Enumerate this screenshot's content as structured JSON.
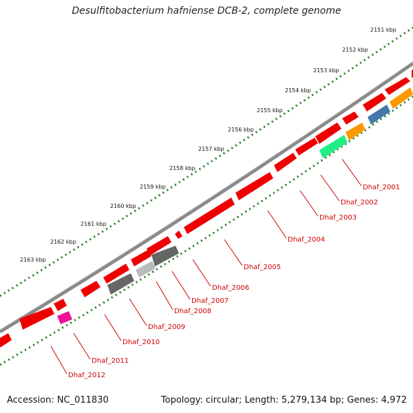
{
  "title": "Desulfitobacterium hafniense DCB-2, complete genome",
  "footer": {
    "accession": "Accession: NC_011830",
    "summary": "Topology: circular; Length: 5,279,134 bp; Genes: 4,972"
  },
  "colors": {
    "backbone": "#8a8a8a",
    "tick_dots": "#1a7a1a",
    "gene_red": "#ee0000",
    "gene_gray": "#666666",
    "gene_lightgray": "#bbbbbb",
    "gene_green": "#22ee88",
    "gene_orange": "#ff9900",
    "gene_blue": "#4477aa",
    "gene_magenta": "#ee1199",
    "label_red": "#cc0000"
  },
  "kbp_ticks": [
    "2151 kbp",
    "2152 kbp",
    "2153 kbp",
    "2154 kbp",
    "2155 kbp",
    "2156 kbp",
    "2157 kbp",
    "2158 kbp",
    "2159 kbp",
    "2160 kbp",
    "2161 kbp",
    "2162 kbp",
    "2163 kbp"
  ],
  "gene_labels": [
    "Dhaf_2001",
    "Dhaf_2002",
    "Dhaf_2003",
    "Dhaf_2004",
    "Dhaf_2005",
    "Dhaf_2006",
    "Dhaf_2007",
    "Dhaf_2008",
    "Dhaf_2009",
    "Dhaf_2010",
    "Dhaf_2011",
    "Dhaf_2012"
  ]
}
